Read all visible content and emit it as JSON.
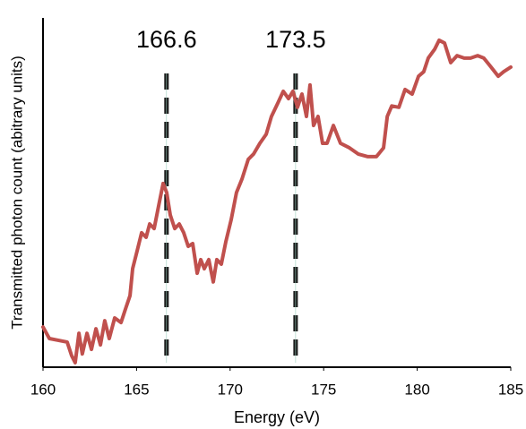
{
  "chart_data": {
    "type": "line",
    "xlabel": "Energy (eV)",
    "ylabel": "Transmitted photon count (abitrary units)",
    "xlim": [
      160,
      185
    ],
    "xticks": [
      160,
      165,
      170,
      175,
      180,
      185
    ],
    "ylim": [
      0,
      100
    ],
    "color": "#c0504d",
    "vlines": [
      166.6,
      173.5
    ],
    "x": [
      160,
      160.34,
      160.81,
      161.29,
      161.53,
      161.72,
      161.92,
      162.1,
      162.35,
      162.59,
      162.83,
      163.07,
      163.3,
      163.54,
      163.83,
      164.17,
      164.41,
      164.65,
      164.79,
      165.03,
      165.27,
      165.51,
      165.7,
      165.94,
      166.18,
      166.42,
      166.61,
      166.8,
      167.04,
      167.28,
      167.52,
      167.76,
      168.0,
      168.24,
      168.43,
      168.62,
      168.86,
      169.1,
      169.29,
      169.53,
      169.77,
      170.06,
      170.34,
      170.63,
      170.97,
      171.25,
      171.59,
      171.93,
      172.21,
      172.55,
      172.84,
      173.12,
      173.36,
      173.6,
      173.84,
      174.08,
      174.27,
      174.46,
      174.7,
      174.94,
      175.18,
      175.52,
      175.9,
      176.38,
      176.86,
      177.34,
      177.82,
      178.2,
      178.4,
      178.64,
      179.02,
      179.35,
      179.73,
      180.07,
      180.35,
      180.59,
      180.93,
      181.17,
      181.46,
      181.79,
      182.13,
      182.51,
      182.85,
      183.23,
      183.56,
      183.95,
      184.33,
      184.62,
      185
    ],
    "values": [
      11.5,
      8.2,
      7.7,
      7.2,
      3.3,
      1.3,
      9.7,
      3.8,
      9.7,
      5.1,
      11,
      6.4,
      13.3,
      8.2,
      14.1,
      12.8,
      16.7,
      20.5,
      28.2,
      33.3,
      38.5,
      37.2,
      41,
      39.7,
      46.2,
      52.6,
      50,
      43.6,
      39.7,
      41,
      38.5,
      34.6,
      35.4,
      26.9,
      30.8,
      28.2,
      30.8,
      24.4,
      30.8,
      29.5,
      35.9,
      42.3,
      50,
      53.8,
      59.5,
      61,
      64.1,
      66.7,
      71.8,
      75.6,
      79,
      76.9,
      79,
      74.4,
      78.2,
      71.8,
      80.8,
      69.2,
      71.8,
      64.1,
      64.1,
      69.2,
      64.1,
      62.8,
      61,
      60.3,
      60.3,
      62.8,
      71.8,
      74.8,
      74.4,
      79.5,
      78.2,
      83.3,
      84.6,
      88.5,
      91,
      93.6,
      92.8,
      87.2,
      89.2,
      88.5,
      88.5,
      89.2,
      88.5,
      85.9,
      83.3,
      84.6,
      85.9
    ]
  }
}
